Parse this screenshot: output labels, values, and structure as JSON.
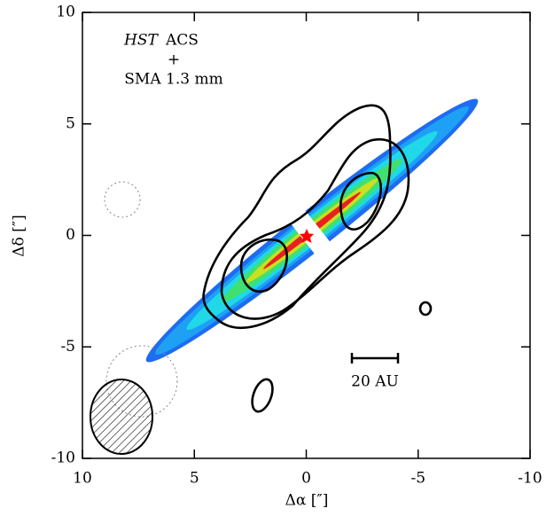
{
  "chart_data": {
    "type": "image",
    "x_label": "Δα [″]",
    "y_label": "Δδ [″]",
    "xlim": [
      10,
      -10
    ],
    "ylim": [
      -10,
      10
    ],
    "xticks": [
      10,
      5,
      0,
      -5,
      -10
    ],
    "yticks": [
      -10,
      -5,
      0,
      5,
      10
    ],
    "annotations": [
      "HST",
      "ACS",
      "+",
      "SMA 1.3 mm",
      "20 AU"
    ]
  }
}
